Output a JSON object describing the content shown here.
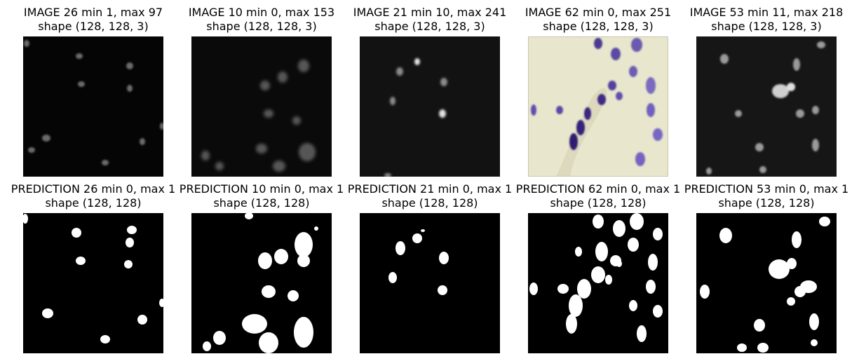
{
  "rows": [
    {
      "kind": "image",
      "panels": [
        {
          "title": "IMAGE 26 min 1, max 97",
          "shape": "shape (128, 128, 3)",
          "style": "fluor-dark"
        },
        {
          "title": "IMAGE 10 min 0, max 153",
          "shape": "shape (128, 128, 3)",
          "style": "fluor-blurry"
        },
        {
          "title": "IMAGE 21 min 10, max 241",
          "shape": "shape (128, 128, 3)",
          "style": "fluor-dim"
        },
        {
          "title": "IMAGE 62 min 0, max 251",
          "shape": "shape (128, 128, 3)",
          "style": "histology-purple"
        },
        {
          "title": "IMAGE 53 min 11, max 218",
          "shape": "shape (128, 128, 3)",
          "style": "fluor-gray"
        }
      ]
    },
    {
      "kind": "prediction",
      "panels": [
        {
          "title": "PREDICTION 26 min 0, max 1",
          "shape": "shape (128, 128)",
          "style": "binary-mask"
        },
        {
          "title": "PREDICTION 10 min 0, max 1",
          "shape": "shape (128, 128)",
          "style": "binary-mask"
        },
        {
          "title": "PREDICTION 21 min 0, max 1",
          "shape": "shape (128, 128)",
          "style": "binary-mask"
        },
        {
          "title": "PREDICTION 62 min 0, max 1",
          "shape": "shape (128, 128)",
          "style": "binary-mask"
        },
        {
          "title": "PREDICTION 53 min 0, max 1",
          "shape": "shape (128, 128)",
          "style": "binary-mask"
        }
      ]
    }
  ]
}
